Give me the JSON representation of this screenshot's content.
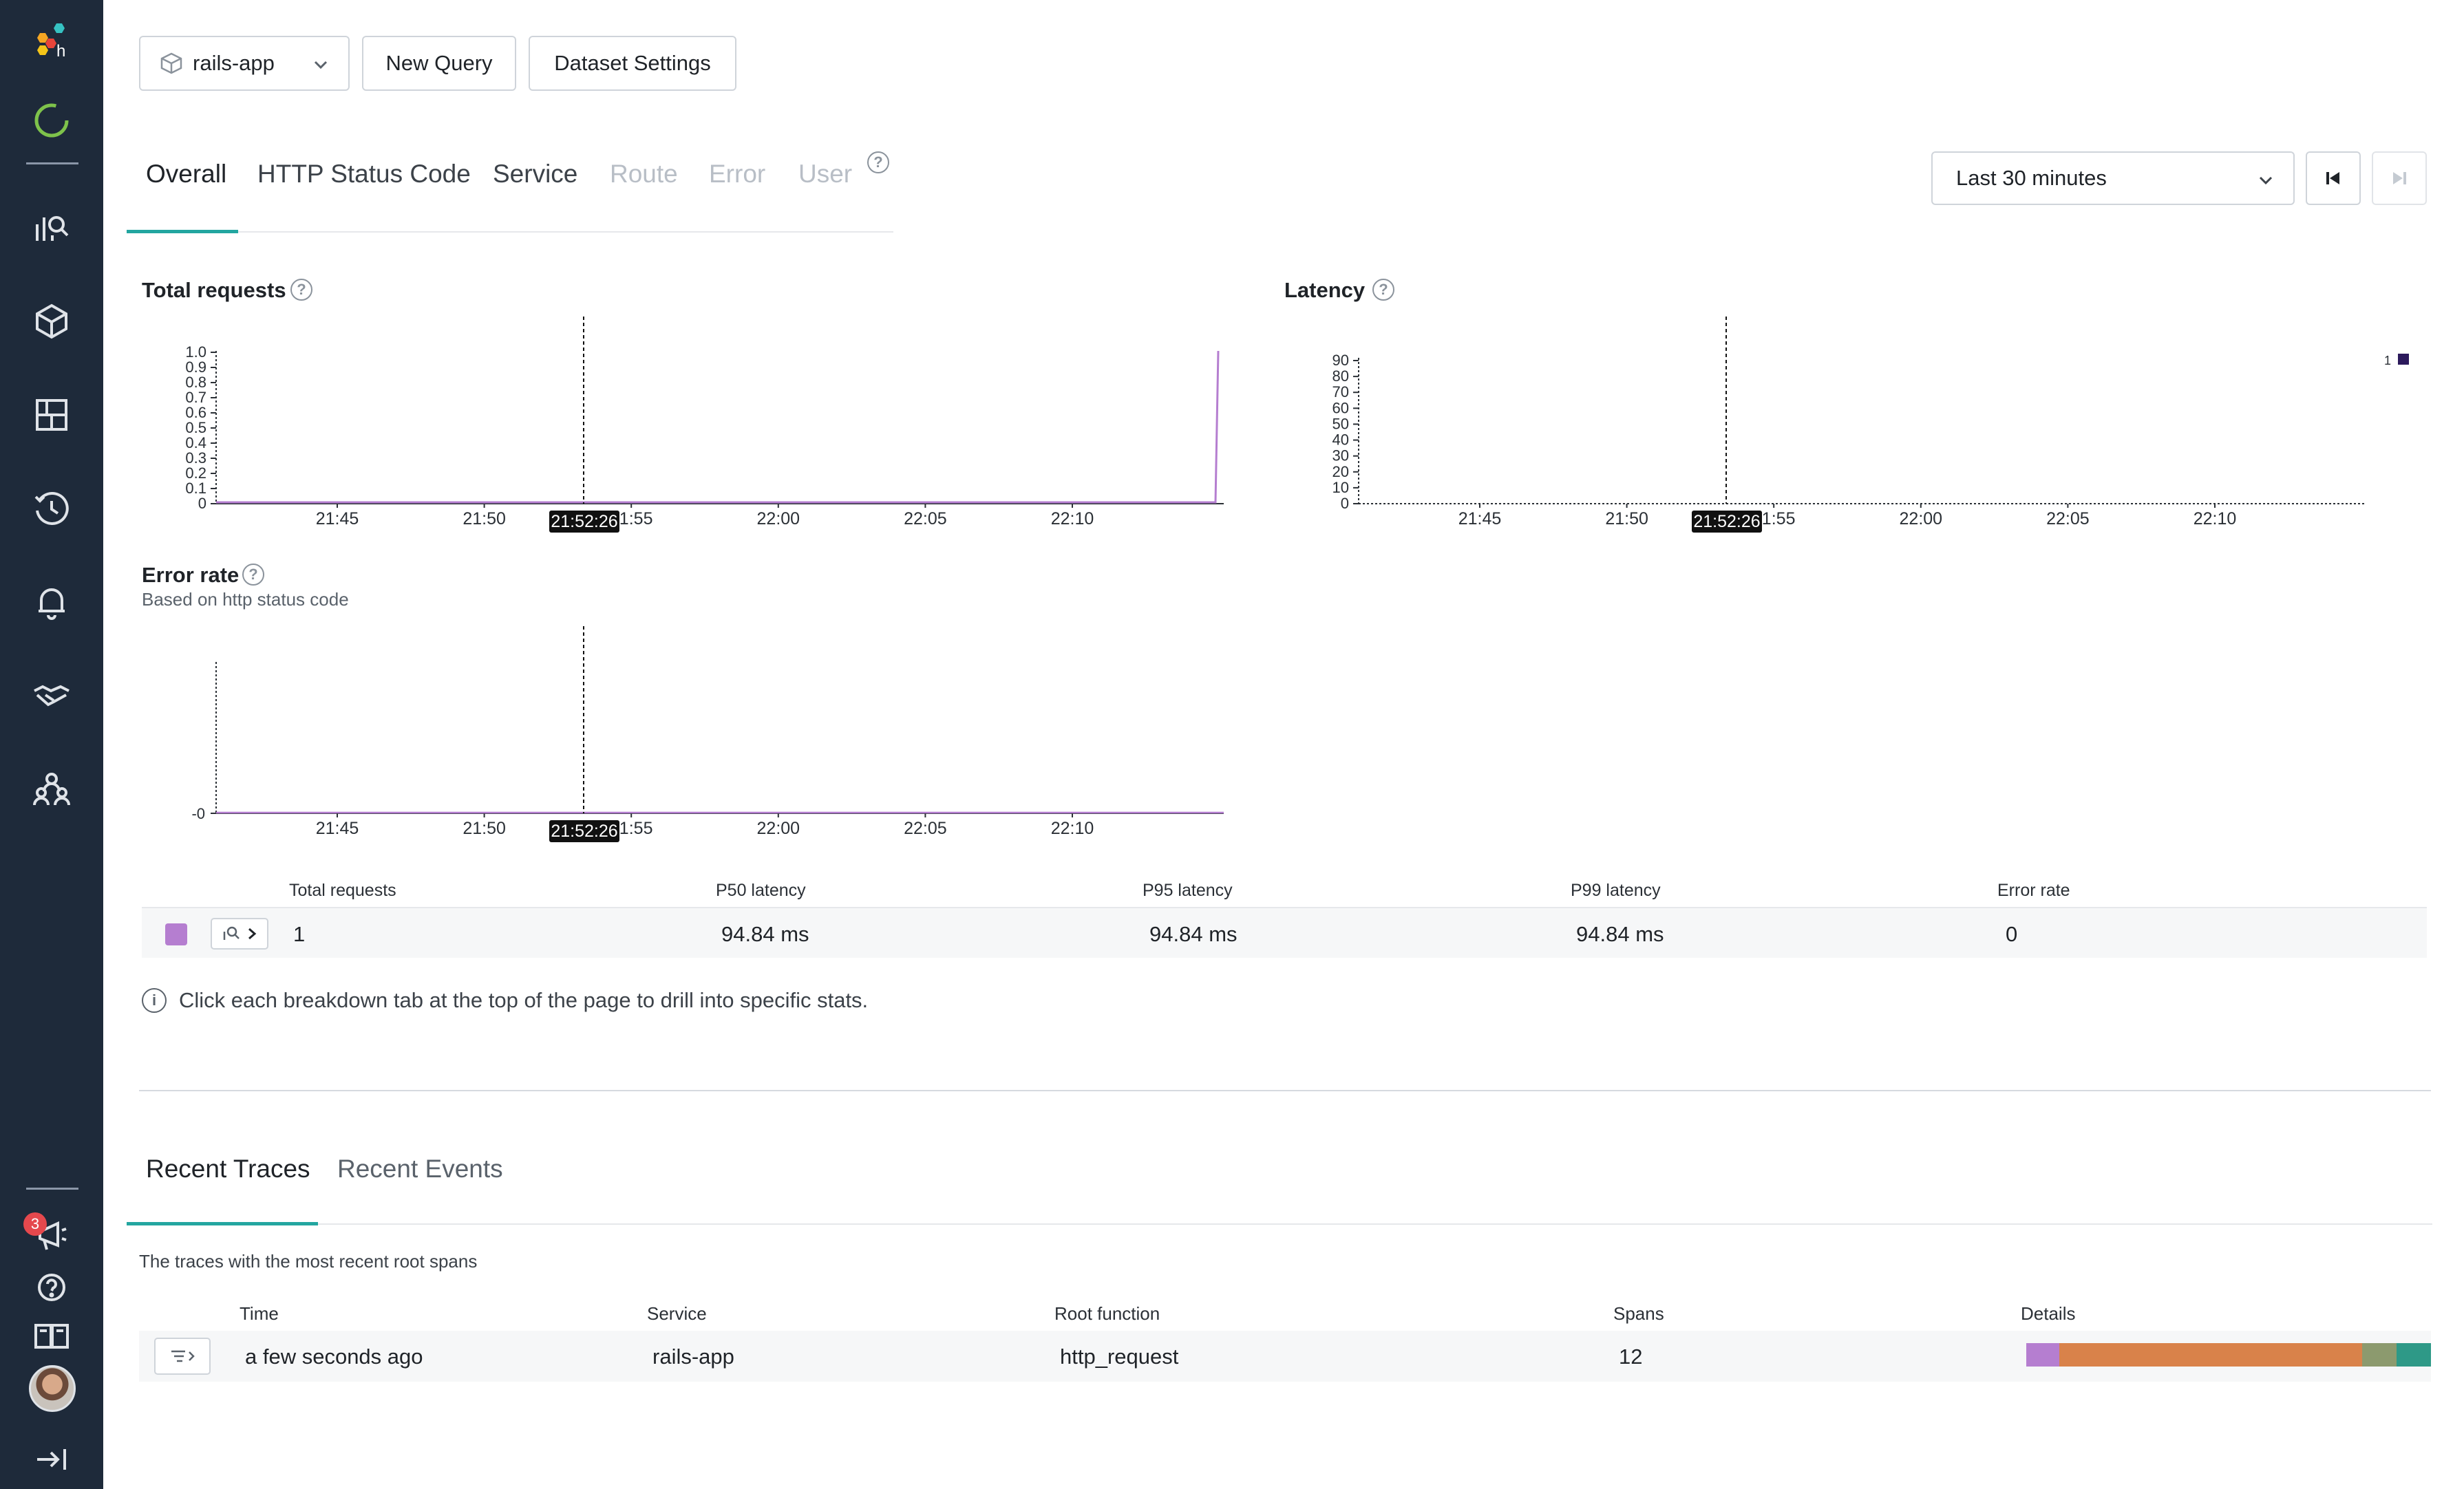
{
  "colors": {
    "sidebar_bg": "#1e2a3a",
    "accent_teal": "#23a6a0",
    "series_purple": "#b57ed0",
    "legend_dark": "#2c1a5c",
    "span_purple": "#b57ed0",
    "span_orange": "#d9824a",
    "span_olive": "#8c9a6e",
    "span_teal": "#2e9987"
  },
  "sidebar": {
    "icons": [
      "honeycomb-logo-icon",
      "loading-ring-icon",
      "query-icon",
      "dataset-cube-icon",
      "boards-icon",
      "history-icon",
      "alerts-bell-icon",
      "integrations-handshake-icon",
      "team-icon",
      "announcements-icon",
      "help-icon",
      "docs-book-icon",
      "avatar",
      "collapse-icon"
    ],
    "notification_count": "3"
  },
  "toolbar": {
    "dataset": "rails-app",
    "new_query": "New Query",
    "dataset_settings": "Dataset Settings"
  },
  "tabs": [
    {
      "label": "Overall",
      "state": "active"
    },
    {
      "label": "HTTP Status Code",
      "state": "enabled"
    },
    {
      "label": "Service",
      "state": "enabled"
    },
    {
      "label": "Route",
      "state": "disabled"
    },
    {
      "label": "Error",
      "state": "disabled"
    },
    {
      "label": "User",
      "state": "disabled"
    }
  ],
  "time_range": {
    "selected": "Last 30 minutes"
  },
  "chart_data": [
    {
      "type": "line",
      "title": "Total requests",
      "x": [
        "21:45",
        "21:50",
        "21:55",
        "22:00",
        "22:05",
        "22:10"
      ],
      "yticks": [
        "1.0",
        "0.9",
        "0.8",
        "0.7",
        "0.6",
        "0.5",
        "0.4",
        "0.3",
        "0.2",
        "0.1",
        "0"
      ],
      "ylim": [
        0,
        1.0
      ],
      "cursor_label": "21:52:26",
      "series": [
        {
          "values_note_points": [
            [
              0,
              0
            ],
            [
              0.995,
              0
            ],
            [
              1.0,
              1
            ]
          ]
        }
      ]
    },
    {
      "type": "scatter",
      "title": "Latency",
      "x": [
        "21:45",
        "21:50",
        "21:55",
        "22:00",
        "22:05",
        "22:10"
      ],
      "yticks": [
        "90",
        "80",
        "70",
        "60",
        "50",
        "40",
        "30",
        "20",
        "10",
        "0"
      ],
      "ylim": [
        0,
        90
      ],
      "cursor_label": "21:52:26",
      "legend_value": "1"
    },
    {
      "type": "line",
      "title": "Error rate",
      "subtitle": "Based on http status code",
      "x": [
        "21:45",
        "21:50",
        "21:55",
        "22:00",
        "22:05",
        "22:10"
      ],
      "yticks": [
        "-0"
      ],
      "cursor_label": "21:52:26"
    }
  ],
  "stats": {
    "headers": [
      "Total requests",
      "P50 latency",
      "P95 latency",
      "P99 latency",
      "Error rate"
    ],
    "row": [
      "1",
      "94.84 ms",
      "94.84 ms",
      "94.84 ms",
      "0"
    ]
  },
  "info_text": "Click each breakdown tab at the top of the page to drill into specific stats.",
  "bottom_tabs": [
    {
      "label": "Recent Traces",
      "state": "active"
    },
    {
      "label": "Recent Events",
      "state": "enabled"
    }
  ],
  "traces": {
    "description": "The traces with the most recent root spans",
    "headers": [
      "Time",
      "Service",
      "Root function",
      "Spans",
      "Details"
    ],
    "rows": [
      {
        "time": "a few seconds ago",
        "service": "rails-app",
        "root_function": "http_request",
        "spans": "12"
      }
    ]
  }
}
